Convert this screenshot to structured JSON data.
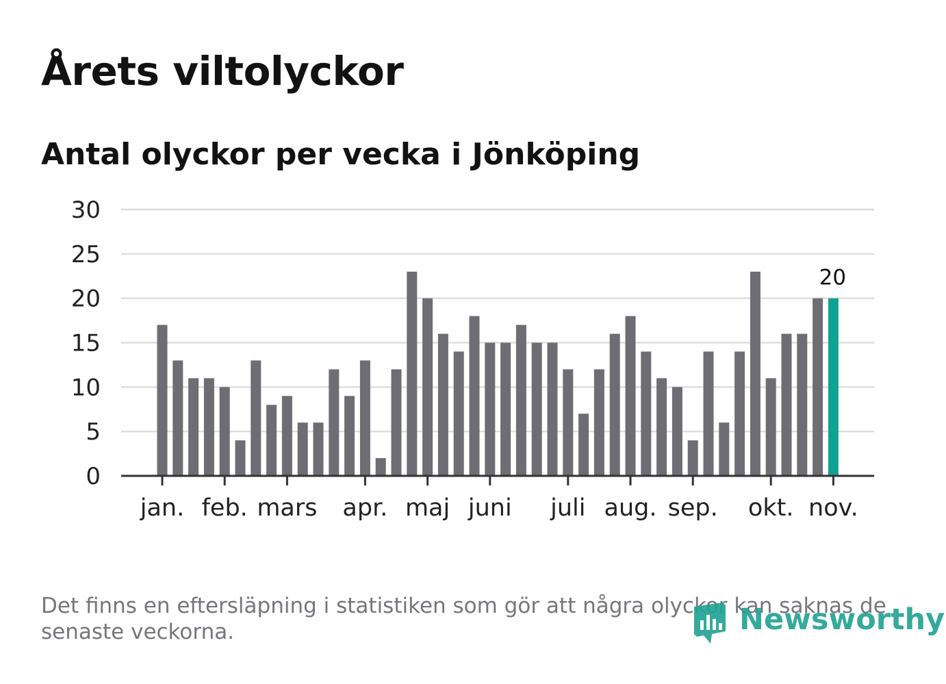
{
  "title": "Årets viltolyckor",
  "subtitle": "Antal olyckor per vecka i Jönköping",
  "note": "Det finns en eftersläpning i statistiken som gör att några olyckor kan saknas de senaste veckorna.",
  "logo": {
    "text": "Newsworthy"
  },
  "colors": {
    "bar": "#6e6d73",
    "highlight": "#0ea293",
    "grid": "#dedede",
    "axis": "#333333",
    "logo": "#23a394"
  },
  "chart_data": {
    "type": "bar",
    "title": "Antal olyckor per vecka i Jönköping",
    "xlabel": "",
    "ylabel": "",
    "ylim": [
      0,
      30
    ],
    "y_ticks": [
      0,
      5,
      10,
      15,
      20,
      25,
      30
    ],
    "grid": true,
    "weeks": [
      1,
      2,
      3,
      4,
      5,
      6,
      7,
      8,
      9,
      10,
      11,
      12,
      13,
      14,
      15,
      16,
      17,
      18,
      19,
      20,
      21,
      22,
      23,
      24,
      25,
      26,
      27,
      28,
      29,
      30,
      31,
      32,
      33,
      34,
      35,
      36,
      37,
      38,
      39,
      40,
      41,
      42,
      43,
      44
    ],
    "values": [
      17,
      13,
      11,
      11,
      10,
      4,
      13,
      8,
      9,
      6,
      6,
      12,
      9,
      13,
      2,
      12,
      23,
      20,
      16,
      14,
      18,
      15,
      15,
      17,
      15,
      15,
      12,
      7,
      12,
      16,
      18,
      14,
      11,
      10,
      4,
      14,
      6,
      14,
      23,
      11,
      16,
      16,
      20,
      20
    ],
    "highlight_index": 43,
    "highlight_label": "20",
    "months": [
      {
        "label": "jan.",
        "week_pos": 1
      },
      {
        "label": "feb.",
        "week_pos": 5
      },
      {
        "label": "mars",
        "week_pos": 9
      },
      {
        "label": "apr.",
        "week_pos": 14
      },
      {
        "label": "maj",
        "week_pos": 18
      },
      {
        "label": "juni",
        "week_pos": 22
      },
      {
        "label": "juli",
        "week_pos": 27
      },
      {
        "label": "aug.",
        "week_pos": 31
      },
      {
        "label": "sep.",
        "week_pos": 35
      },
      {
        "label": "okt.",
        "week_pos": 40
      },
      {
        "label": "nov.",
        "week_pos": 44
      }
    ]
  }
}
